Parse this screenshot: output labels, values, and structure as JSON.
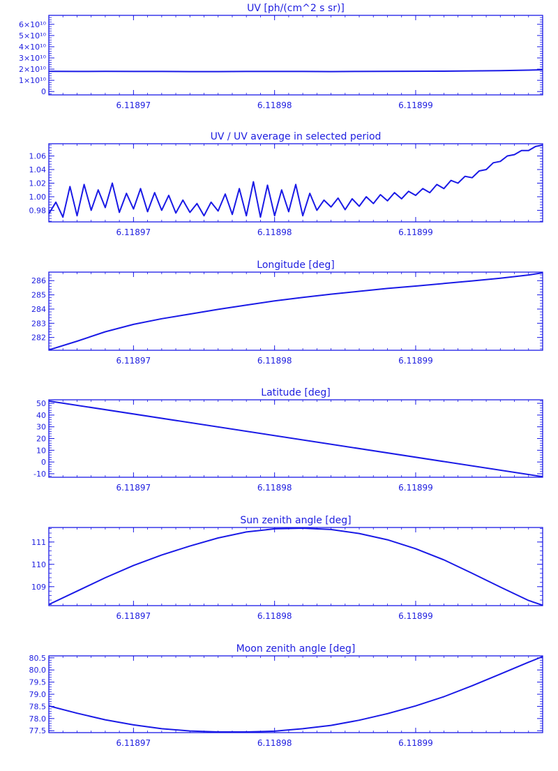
{
  "color": "#1a1ae6",
  "chart_data": [
    {
      "type": "line",
      "title": "UV [ph/(cm^2 s sr)]",
      "xlabel": "",
      "ylabel": "",
      "xticks": [
        "6.11897",
        "6.11898",
        "6.11899"
      ],
      "yticks": [
        "0",
        "1×10¹⁰",
        "2×10¹⁰",
        "3×10¹⁰",
        "4×10¹⁰",
        "5×10¹⁰",
        "6×10¹⁰"
      ],
      "ylim": [
        -3000000000.0,
        68000000000.0
      ],
      "xlim": [
        6.118964,
        6.118999
      ],
      "grid": false,
      "series": [
        {
          "values": [
            [
              6.118964,
              18000000000.0
            ],
            [
              6.118966,
              17900000000.0
            ],
            [
              6.118968,
              18000000000.0
            ],
            [
              6.11897,
              17900000000.0
            ],
            [
              6.118972,
              17900000000.0
            ],
            [
              6.118974,
              17800000000.0
            ],
            [
              6.118976,
              17800000000.0
            ],
            [
              6.118978,
              17900000000.0
            ],
            [
              6.11898,
              17900000000.0
            ],
            [
              6.118982,
              17900000000.0
            ],
            [
              6.118984,
              17800000000.0
            ],
            [
              6.118986,
              17900000000.0
            ],
            [
              6.118988,
              18000000000.0
            ],
            [
              6.11899,
              18100000000.0
            ],
            [
              6.118992,
              18200000000.0
            ],
            [
              6.118994,
              18400000000.0
            ],
            [
              6.118996,
              18700000000.0
            ],
            [
              6.118998,
              19100000000.0
            ],
            [
              6.118999,
              19400000000.0
            ]
          ]
        }
      ]
    },
    {
      "type": "line",
      "title": "UV / UV average in selected period",
      "xlabel": "",
      "ylabel": "",
      "xticks": [
        "6.11897",
        "6.11898",
        "6.11899"
      ],
      "yticks": [
        "0.98",
        "1.00",
        "1.02",
        "1.04",
        "1.06"
      ],
      "ylim": [
        0.963,
        1.078
      ],
      "xlim": [
        6.118964,
        6.118999
      ],
      "grid": false,
      "series": [
        {
          "values": [
            [
              6.118964,
              0.975
            ],
            [
              6.1189645,
              0.992
            ],
            [
              6.118965,
              0.97
            ],
            [
              6.1189655,
              1.015
            ],
            [
              6.118966,
              0.972
            ],
            [
              6.1189665,
              1.018
            ],
            [
              6.118967,
              0.98
            ],
            [
              6.1189675,
              1.01
            ],
            [
              6.118968,
              0.984
            ],
            [
              6.1189685,
              1.02
            ],
            [
              6.118969,
              0.977
            ],
            [
              6.1189695,
              1.005
            ],
            [
              6.11897,
              0.982
            ],
            [
              6.1189705,
              1.012
            ],
            [
              6.118971,
              0.978
            ],
            [
              6.1189715,
              1.006
            ],
            [
              6.118972,
              0.98
            ],
            [
              6.1189725,
              1.002
            ],
            [
              6.118973,
              0.976
            ],
            [
              6.1189735,
              0.995
            ],
            [
              6.118974,
              0.977
            ],
            [
              6.1189745,
              0.99
            ],
            [
              6.118975,
              0.972
            ],
            [
              6.1189755,
              0.992
            ],
            [
              6.118976,
              0.979
            ],
            [
              6.1189765,
              1.004
            ],
            [
              6.118977,
              0.974
            ],
            [
              6.1189775,
              1.012
            ],
            [
              6.118978,
              0.972
            ],
            [
              6.1189785,
              1.022
            ],
            [
              6.118979,
              0.97
            ],
            [
              6.1189795,
              1.017
            ],
            [
              6.11898,
              0.972
            ],
            [
              6.1189805,
              1.01
            ],
            [
              6.118981,
              0.978
            ],
            [
              6.1189815,
              1.018
            ],
            [
              6.118982,
              0.972
            ],
            [
              6.1189825,
              1.005
            ],
            [
              6.118983,
              0.98
            ],
            [
              6.1189835,
              0.995
            ],
            [
              6.118984,
              0.985
            ],
            [
              6.1189845,
              0.998
            ],
            [
              6.118985,
              0.981
            ],
            [
              6.1189855,
              0.997
            ],
            [
              6.118986,
              0.986
            ],
            [
              6.1189865,
              1.0
            ],
            [
              6.118987,
              0.99
            ],
            [
              6.1189875,
              1.003
            ],
            [
              6.118988,
              0.994
            ],
            [
              6.1189885,
              1.006
            ],
            [
              6.118989,
              0.997
            ],
            [
              6.1189895,
              1.008
            ],
            [
              6.11899,
              1.002
            ],
            [
              6.1189905,
              1.012
            ],
            [
              6.118991,
              1.006
            ],
            [
              6.1189915,
              1.018
            ],
            [
              6.118992,
              1.012
            ],
            [
              6.1189925,
              1.024
            ],
            [
              6.118993,
              1.02
            ],
            [
              6.1189935,
              1.03
            ],
            [
              6.118994,
              1.028
            ],
            [
              6.1189945,
              1.038
            ],
            [
              6.118995,
              1.04
            ],
            [
              6.1189955,
              1.05
            ],
            [
              6.118996,
              1.052
            ],
            [
              6.1189965,
              1.06
            ],
            [
              6.118997,
              1.062
            ],
            [
              6.1189975,
              1.068
            ],
            [
              6.118998,
              1.068
            ],
            [
              6.1189985,
              1.074
            ],
            [
              6.118999,
              1.076
            ]
          ]
        }
      ]
    },
    {
      "type": "line",
      "title": "Longitude [deg]",
      "xlabel": "",
      "ylabel": "",
      "xticks": [
        "6.11897",
        "6.11898",
        "6.11899"
      ],
      "yticks": [
        "282",
        "283",
        "284",
        "285",
        "286"
      ],
      "ylim": [
        281.1,
        286.6
      ],
      "xlim": [
        6.118964,
        6.118999
      ],
      "grid": false,
      "series": [
        {
          "values": [
            [
              6.118964,
              281.12
            ],
            [
              6.118966,
              281.74
            ],
            [
              6.118968,
              282.4
            ],
            [
              6.11897,
              282.92
            ],
            [
              6.118972,
              283.32
            ],
            [
              6.118974,
              283.65
            ],
            [
              6.118976,
              283.98
            ],
            [
              6.118978,
              284.28
            ],
            [
              6.11898,
              284.57
            ],
            [
              6.118982,
              284.82
            ],
            [
              6.118984,
              285.05
            ],
            [
              6.118986,
              285.25
            ],
            [
              6.118988,
              285.45
            ],
            [
              6.11899,
              285.62
            ],
            [
              6.118992,
              285.8
            ],
            [
              6.118994,
              285.98
            ],
            [
              6.118996,
              286.17
            ],
            [
              6.118998,
              286.4
            ],
            [
              6.118999,
              286.55
            ]
          ]
        }
      ]
    },
    {
      "type": "line",
      "title": "Latitude [deg]",
      "xlabel": "",
      "ylabel": "",
      "xticks": [
        "6.11897",
        "6.11898",
        "6.11899"
      ],
      "yticks": [
        "-10",
        "0",
        "10",
        "20",
        "30",
        "40",
        "50"
      ],
      "ylim": [
        -13,
        53
      ],
      "xlim": [
        6.118964,
        6.118999
      ],
      "grid": false,
      "series": [
        {
          "values": [
            [
              6.118964,
              52.0
            ],
            [
              6.118999,
              -12.5
            ]
          ]
        }
      ]
    },
    {
      "type": "line",
      "title": "Sun zenith angle [deg]",
      "xlabel": "",
      "ylabel": "",
      "xticks": [
        "6.11897",
        "6.11898",
        "6.11899"
      ],
      "yticks": [
        "109",
        "110",
        "111"
      ],
      "ylim": [
        108.15,
        111.65
      ],
      "xlim": [
        6.118964,
        6.118999
      ],
      "grid": false,
      "series": [
        {
          "values": [
            [
              6.118964,
              108.2
            ],
            [
              6.118966,
              108.8
            ],
            [
              6.118968,
              109.4
            ],
            [
              6.11897,
              109.95
            ],
            [
              6.118972,
              110.42
            ],
            [
              6.118974,
              110.82
            ],
            [
              6.118976,
              111.18
            ],
            [
              6.118978,
              111.45
            ],
            [
              6.11898,
              111.59
            ],
            [
              6.118982,
              111.62
            ],
            [
              6.118984,
              111.56
            ],
            [
              6.118986,
              111.38
            ],
            [
              6.118988,
              111.1
            ],
            [
              6.11899,
              110.7
            ],
            [
              6.118992,
              110.2
            ],
            [
              6.118994,
              109.6
            ],
            [
              6.118996,
              108.98
            ],
            [
              6.118998,
              108.38
            ],
            [
              6.118999,
              108.17
            ]
          ]
        }
      ]
    },
    {
      "type": "line",
      "title": "Moon zenith angle [deg]",
      "xlabel": "",
      "ylabel": "",
      "xticks": [
        "6.11897",
        "6.11898",
        "6.11899"
      ],
      "yticks": [
        "77.5",
        "78.0",
        "78.5",
        "79.0",
        "79.5",
        "80.0",
        "80.5"
      ],
      "ylim": [
        77.42,
        80.58
      ],
      "xlim": [
        6.118964,
        6.118999
      ],
      "grid": false,
      "series": [
        {
          "values": [
            [
              6.118964,
              78.52
            ],
            [
              6.118966,
              78.22
            ],
            [
              6.118968,
              77.95
            ],
            [
              6.11897,
              77.74
            ],
            [
              6.118972,
              77.58
            ],
            [
              6.118974,
              77.49
            ],
            [
              6.118976,
              77.45
            ],
            [
              6.118978,
              77.45
            ],
            [
              6.11898,
              77.48
            ],
            [
              6.118982,
              77.58
            ],
            [
              6.118984,
              77.72
            ],
            [
              6.118986,
              77.93
            ],
            [
              6.118988,
              78.2
            ],
            [
              6.11899,
              78.52
            ],
            [
              6.118992,
              78.9
            ],
            [
              6.118994,
              79.35
            ],
            [
              6.118996,
              79.83
            ],
            [
              6.118998,
              80.32
            ],
            [
              6.118999,
              80.55
            ]
          ]
        }
      ]
    }
  ]
}
